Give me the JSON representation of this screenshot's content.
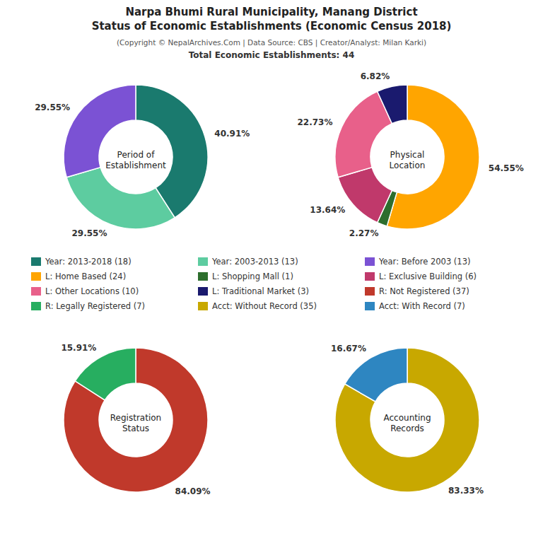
{
  "title": "Narpa Bhumi Rural Municipality, Manang District\nStatus of Economic Establishments (Economic Census 2018)",
  "subtitle": "(Copyright © NepalArchives.Com | Data Source: CBS | Creator/Analyst: Milan Karki)",
  "annotations": [
    "Total Economic Establishments: 44"
  ],
  "chart_data": [
    {
      "type": "pie",
      "title": "Period of\nEstablishment",
      "categories": [
        "Year: 2013-2018 (18)",
        "Year: 2003-2013 (13)",
        "Year: Before 2003 (13)"
      ],
      "values": [
        40.91,
        29.55,
        29.55
      ],
      "value_labels": [
        "40.91%",
        "29.55%",
        "29.55%"
      ],
      "colors": [
        "#1a7a6e",
        "#5dcca0",
        "#7b52d4"
      ],
      "data_labels": true,
      "legend": "center"
    },
    {
      "type": "pie",
      "title": "Physical\nLocation",
      "categories": [
        "L: Home Based (24)",
        "L: Shopping Mall (1)",
        "L: Exclusive Building (6)",
        "L: Other Locations (10)",
        "L: Traditional Market (3)"
      ],
      "values": [
        54.55,
        2.27,
        13.64,
        22.73,
        6.82
      ],
      "value_labels": [
        "54.55%",
        "2.27%",
        "13.64%",
        "22.73%",
        "6.82%"
      ],
      "colors": [
        "#FFA500",
        "#2d6e2d",
        "#c0396b",
        "#e8608a",
        "#1a1a6e"
      ],
      "data_labels": true,
      "legend": "center"
    },
    {
      "type": "pie",
      "title": "Registration\nStatus",
      "categories": [
        "R: Not Registered (37)",
        "R: Legally Registered (7)"
      ],
      "values": [
        84.09,
        15.91
      ],
      "value_labels": [
        "84.09%",
        "15.91%"
      ],
      "colors": [
        "#c0392b",
        "#27ae60"
      ],
      "data_labels": true,
      "legend": "center"
    },
    {
      "type": "pie",
      "title": "Accounting\nRecords",
      "categories": [
        "Acct: Without Record (35)",
        "Acct: With Record (7)"
      ],
      "values": [
        83.33,
        16.67
      ],
      "value_labels": [
        "83.33%",
        "16.67%"
      ],
      "colors": [
        "#c8a800",
        "#2e86c1"
      ],
      "data_labels": true,
      "legend": "center"
    }
  ]
}
